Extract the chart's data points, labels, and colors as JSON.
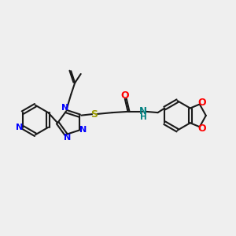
{
  "bg_color": "#efefef",
  "bond_color": "#1a1a1a",
  "N_color": "#0000ff",
  "O_color": "#ff0000",
  "S_color": "#999900",
  "NH_color": "#008080",
  "line_width": 1.5,
  "fig_w": 3.0,
  "fig_h": 3.0,
  "dpi": 100,
  "xlim": [
    0,
    12
  ],
  "ylim": [
    0,
    8
  ]
}
